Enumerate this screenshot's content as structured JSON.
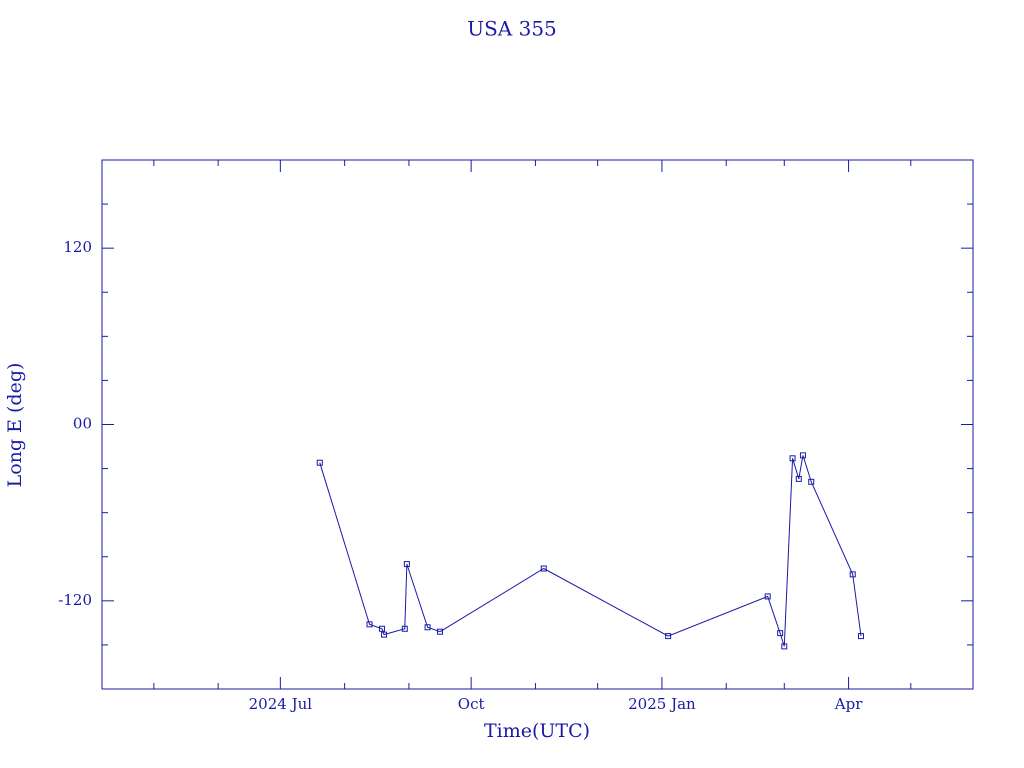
{
  "chart_data": {
    "type": "line",
    "title": "USA 355",
    "x_label": "Time(UTC)",
    "y_label": "Long E (deg)",
    "color": "#1a1aa6",
    "x": [
      "2024-07-20",
      "2024-08-13",
      "2024-08-19",
      "2024-08-20",
      "2024-08-30",
      "2024-08-31",
      "2024-09-10",
      "2024-09-16",
      "2024-11-05",
      "2025-01-04",
      "2025-02-21",
      "2025-02-27",
      "2025-03-01",
      "2025-03-05",
      "2025-03-08",
      "2025-03-10",
      "2025-03-14",
      "2025-04-03",
      "2025-04-07"
    ],
    "values": [
      -26,
      -136,
      -139,
      -143,
      -139,
      -95,
      -138,
      -141,
      -98,
      -144,
      -117,
      -142,
      -151,
      -23,
      -37,
      -21,
      -39,
      -102,
      -144
    ],
    "xlim": [
      "2024-04-06",
      "2025-05-31"
    ],
    "xticks": [
      {
        "value": "2024-07-01",
        "label": "2024 Jul"
      },
      {
        "value": "2024-10-01",
        "label": "Oct"
      },
      {
        "value": "2025-01-01",
        "label": "2025 Jan"
      },
      {
        "value": "2025-04-01",
        "label": "Apr"
      }
    ],
    "xminor": [
      "2024-05-01",
      "2024-06-01",
      "2024-08-01",
      "2024-09-01",
      "2024-11-01",
      "2024-12-01",
      "2025-02-01",
      "2025-03-01",
      "2025-05-01"
    ],
    "ylim": [
      -180,
      180
    ],
    "yticks": [
      -120,
      {
        "value": 0,
        "label": "00"
      },
      120
    ],
    "yminor": [
      -150,
      -90,
      -60,
      -30,
      30,
      60,
      90,
      150
    ]
  }
}
